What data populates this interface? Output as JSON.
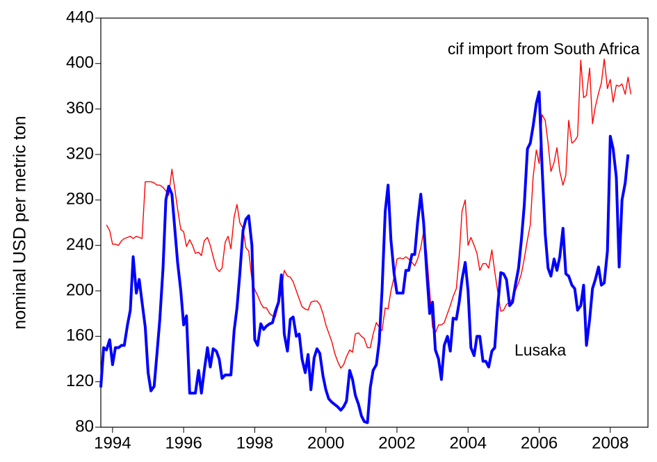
{
  "chart_data": {
    "type": "line",
    "y_label": "nominal USD per metric ton",
    "xlim": [
      1993.67,
      2009.06
    ],
    "xticks": [
      1994,
      1996,
      1998,
      2000,
      2002,
      2004,
      2006,
      2008
    ],
    "ylim": [
      80,
      440
    ],
    "yticks": [
      80,
      120,
      160,
      200,
      240,
      280,
      320,
      360,
      400,
      440
    ],
    "grid": false,
    "series": [
      {
        "name": "Lusaka",
        "color": "#0000ff",
        "x": [
          1993.67,
          1993.75,
          1993.83,
          1993.92,
          1994.0,
          1994.08,
          1994.17,
          1994.25,
          1994.33,
          1994.42,
          1994.5,
          1994.58,
          1994.67,
          1994.75,
          1994.83,
          1994.92,
          1995.0,
          1995.08,
          1995.17,
          1995.25,
          1995.33,
          1995.42,
          1995.5,
          1995.58,
          1995.67,
          1995.75,
          1995.83,
          1995.92,
          1996.0,
          1996.08,
          1996.17,
          1996.25,
          1996.33,
          1996.42,
          1996.5,
          1996.58,
          1996.67,
          1996.75,
          1996.83,
          1996.92,
          1997.0,
          1997.08,
          1997.17,
          1997.25,
          1997.33,
          1997.42,
          1997.5,
          1997.58,
          1997.67,
          1997.75,
          1997.83,
          1997.92,
          1998.0,
          1998.08,
          1998.17,
          1998.25,
          1998.33,
          1998.42,
          1998.5,
          1998.58,
          1998.67,
          1998.75,
          1998.83,
          1998.92,
          1999.0,
          1999.08,
          1999.17,
          1999.25,
          1999.33,
          1999.42,
          1999.5,
          1999.58,
          1999.67,
          1999.75,
          1999.83,
          1999.92,
          2000.0,
          2000.08,
          2000.17,
          2000.25,
          2000.33,
          2000.42,
          2000.5,
          2000.58,
          2000.67,
          2000.75,
          2000.83,
          2000.92,
          2001.0,
          2001.08,
          2001.17,
          2001.25,
          2001.33,
          2001.42,
          2001.5,
          2001.58,
          2001.67,
          2001.75,
          2001.83,
          2001.92,
          2002.0,
          2002.08,
          2002.17,
          2002.25,
          2002.33,
          2002.42,
          2002.5,
          2002.58,
          2002.67,
          2002.75,
          2002.83,
          2002.92,
          2003.0,
          2003.08,
          2003.17,
          2003.25,
          2003.33,
          2003.42,
          2003.5,
          2003.58,
          2003.67,
          2003.75,
          2003.83,
          2003.92,
          2004.0,
          2004.08,
          2004.17,
          2004.25,
          2004.33,
          2004.42,
          2004.5,
          2004.58,
          2004.67,
          2004.75,
          2004.83,
          2004.92,
          2005.0,
          2005.08,
          2005.17,
          2005.25,
          2005.33,
          2005.42,
          2005.5,
          2005.58,
          2005.67,
          2005.75,
          2005.83,
          2005.92,
          2006.0,
          2006.08,
          2006.17,
          2006.25,
          2006.33,
          2006.42,
          2006.5,
          2006.58,
          2006.67,
          2006.75,
          2006.83,
          2006.92,
          2007.0,
          2007.08,
          2007.17,
          2007.25,
          2007.33,
          2007.42,
          2007.5,
          2007.58,
          2007.67,
          2007.75,
          2007.83,
          2007.92,
          2008.0,
          2008.08,
          2008.17,
          2008.25,
          2008.33,
          2008.42,
          2008.5
        ],
        "values": [
          115,
          150,
          148,
          157,
          135,
          150,
          150,
          152,
          152,
          170,
          183,
          230,
          198,
          210,
          190,
          168,
          128,
          112,
          116,
          145,
          175,
          220,
          280,
          292,
          285,
          255,
          225,
          200,
          170,
          178,
          110,
          110,
          110,
          130,
          110,
          130,
          150,
          133,
          149,
          147,
          140,
          123,
          126,
          126,
          126,
          165,
          185,
          215,
          253,
          263,
          266,
          240,
          157,
          152,
          171,
          166,
          169,
          171,
          172,
          182,
          190,
          214,
          162,
          147,
          175,
          177,
          160,
          162,
          140,
          128,
          144,
          113,
          141,
          149,
          145,
          125,
          113,
          105,
          102,
          100,
          98,
          95,
          98,
          103,
          130,
          122,
          108,
          100,
          90,
          85,
          84,
          115,
          130,
          135,
          155,
          200,
          270,
          293,
          245,
          215,
          198,
          198,
          198,
          218,
          218,
          232,
          232,
          260,
          285,
          260,
          220,
          180,
          190,
          148,
          140,
          122,
          152,
          160,
          147,
          176,
          175,
          190,
          210,
          225,
          200,
          150,
          143,
          160,
          160,
          138,
          138,
          133,
          147,
          150,
          185,
          216,
          215,
          210,
          187,
          190,
          205,
          220,
          245,
          275,
          325,
          330,
          345,
          365,
          375,
          310,
          250,
          220,
          213,
          228,
          218,
          230,
          255,
          215,
          213,
          205,
          202,
          183,
          187,
          205,
          152,
          175,
          202,
          210,
          221,
          205,
          207,
          235,
          336,
          325,
          300,
          221,
          280,
          295,
          320
        ]
      },
      {
        "name": "cif import from South Africa",
        "color": "#ff0000",
        "x": [
          1993.83,
          1993.92,
          1994.0,
          1994.08,
          1994.17,
          1994.25,
          1994.33,
          1994.42,
          1994.5,
          1994.58,
          1994.67,
          1994.75,
          1994.83,
          1994.92,
          1995.0,
          1995.08,
          1995.17,
          1995.25,
          1995.33,
          1995.42,
          1995.5,
          1995.58,
          1995.67,
          1995.75,
          1995.83,
          1995.92,
          1996.0,
          1996.08,
          1996.17,
          1996.25,
          1996.33,
          1996.42,
          1996.5,
          1996.58,
          1996.67,
          1996.75,
          1996.83,
          1996.92,
          1997.0,
          1997.08,
          1997.17,
          1997.25,
          1997.33,
          1997.42,
          1997.5,
          1997.58,
          1997.67,
          1997.75,
          1997.83,
          1997.92,
          1998.0,
          1998.08,
          1998.17,
          1998.25,
          1998.33,
          1998.42,
          1998.5,
          1998.58,
          1998.67,
          1998.75,
          1998.83,
          1998.92,
          1999.0,
          1999.08,
          1999.17,
          1999.25,
          1999.33,
          1999.42,
          1999.5,
          1999.58,
          1999.67,
          1999.75,
          1999.83,
          1999.92,
          2000.0,
          2000.08,
          2000.17,
          2000.25,
          2000.33,
          2000.42,
          2000.5,
          2000.58,
          2000.67,
          2000.75,
          2000.83,
          2000.92,
          2001.0,
          2001.08,
          2001.17,
          2001.25,
          2001.33,
          2001.42,
          2001.5,
          2001.58,
          2001.67,
          2001.75,
          2001.83,
          2001.92,
          2002.0,
          2002.08,
          2002.17,
          2002.25,
          2002.33,
          2002.42,
          2002.5,
          2002.58,
          2002.67,
          2002.75,
          2002.83,
          2002.92,
          2003.0,
          2003.08,
          2003.17,
          2003.25,
          2003.33,
          2003.42,
          2003.5,
          2003.58,
          2003.67,
          2003.75,
          2003.83,
          2003.92,
          2004.0,
          2004.08,
          2004.17,
          2004.25,
          2004.33,
          2004.42,
          2004.5,
          2004.58,
          2004.67,
          2004.75,
          2004.83,
          2004.92,
          2005.0,
          2005.08,
          2005.17,
          2005.25,
          2005.33,
          2005.42,
          2005.5,
          2005.58,
          2005.67,
          2005.75,
          2005.83,
          2005.92,
          2006.0,
          2006.08,
          2006.17,
          2006.25,
          2006.33,
          2006.42,
          2006.5,
          2006.58,
          2006.67,
          2006.75,
          2006.83,
          2006.92,
          2007.0,
          2007.08,
          2007.17,
          2007.25,
          2007.33,
          2007.42,
          2007.5,
          2007.58,
          2007.67,
          2007.75,
          2007.83,
          2007.92,
          2008.0,
          2008.08,
          2008.17,
          2008.25,
          2008.33,
          2008.42,
          2008.5,
          2008.58
        ],
        "values": [
          258,
          253,
          241,
          241,
          240,
          244,
          246,
          247,
          248,
          246,
          248,
          247,
          246,
          296,
          296,
          296,
          295,
          293,
          293,
          291,
          288,
          284,
          307,
          290,
          272,
          254,
          252,
          239,
          245,
          240,
          233,
          234,
          231,
          244,
          247,
          240,
          230,
          220,
          217,
          220,
          243,
          248,
          237,
          265,
          276,
          260,
          255,
          238,
          235,
          210,
          201,
          196,
          189,
          185,
          185,
          180,
          178,
          177,
          188,
          200,
          218,
          213,
          212,
          208,
          200,
          193,
          186,
          184,
          183,
          190,
          191,
          191,
          188,
          180,
          170,
          163,
          155,
          145,
          138,
          132,
          135,
          142,
          148,
          146,
          162,
          163,
          160,
          158,
          150,
          150,
          162,
          172,
          168,
          165,
          185,
          184,
          200,
          212,
          228,
          229,
          228,
          230,
          228,
          225,
          222,
          228,
          238,
          252,
          235,
          200,
          168,
          163,
          170,
          170,
          172,
          180,
          187,
          195,
          202,
          230,
          270,
          280,
          240,
          247,
          240,
          233,
          218,
          224,
          224,
          220,
          236,
          217,
          200,
          182,
          183,
          188,
          190,
          193,
          200,
          207,
          215,
          228,
          245,
          258,
          300,
          324,
          312,
          355,
          350,
          330,
          305,
          313,
          326,
          305,
          293,
          302,
          350,
          330,
          332,
          336,
          403,
          370,
          372,
          396,
          347,
          362,
          374,
          383,
          404,
          378,
          386,
          366,
          381,
          380,
          382,
          373,
          388,
          373
        ]
      }
    ]
  }
}
